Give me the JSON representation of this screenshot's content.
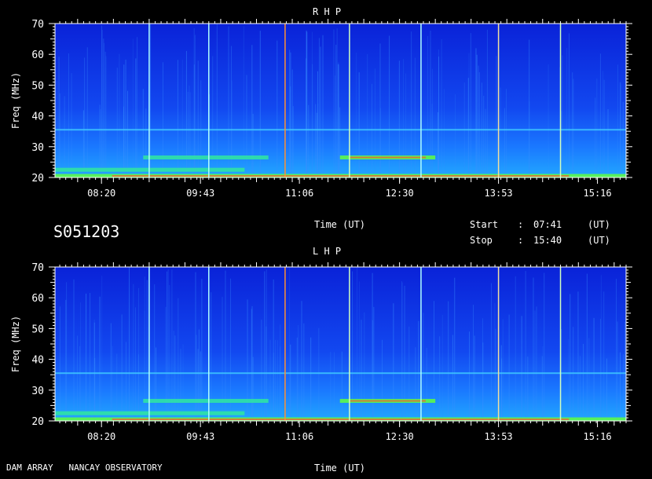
{
  "header": {
    "panel_top_title": "R H P",
    "panel_bottom_title": "L H P"
  },
  "observation": {
    "id": "S051203",
    "start_label": "Start",
    "stop_label": "Stop",
    "separator": ":",
    "start_time": "07:41",
    "stop_time": "15:40",
    "time_unit": "(UT)"
  },
  "footer": {
    "instrument": "DAM ARRAY   NANCAY OBSERVATORY"
  },
  "chart_data": [
    {
      "type": "heatmap",
      "title": "R H P",
      "xlabel": "Time (UT)",
      "ylabel": "Freq (MHz)",
      "xlim": [
        "07:41",
        "15:40"
      ],
      "ylim": [
        20,
        70
      ],
      "x_ticks": [
        "08:20",
        "09:43",
        "11:06",
        "12:30",
        "13:53",
        "15:16"
      ],
      "y_ticks": [
        20,
        30,
        40,
        50,
        60,
        70
      ],
      "bands": [
        {
          "freq": 20.5,
          "start": "07:41",
          "end": "15:40",
          "level": "high"
        },
        {
          "freq": 22.5,
          "start": "07:41",
          "end": "10:20",
          "level": "medium"
        },
        {
          "freq": 26.5,
          "start": "08:55",
          "end": "10:40",
          "level": "medium"
        },
        {
          "freq": 26.5,
          "start": "11:40",
          "end": "13:00",
          "level": "high"
        },
        {
          "freq": 35.5,
          "start": "07:41",
          "end": "15:40",
          "level": "low"
        }
      ],
      "vertical_lines": [
        {
          "time": "09:00",
          "color": "#b0ffff"
        },
        {
          "time": "09:50",
          "color": "#b0ffff"
        },
        {
          "time": "10:54",
          "color": "#ff9030"
        },
        {
          "time": "11:48",
          "color": "#d0ffc0"
        },
        {
          "time": "12:48",
          "color": "#b0ffff"
        },
        {
          "time": "13:53",
          "color": "#f0e0a0"
        },
        {
          "time": "14:45",
          "color": "#d0ffc0"
        }
      ]
    },
    {
      "type": "heatmap",
      "title": "L H P",
      "xlabel": "Time (UT)",
      "ylabel": "Freq (MHz)",
      "xlim": [
        "07:41",
        "15:40"
      ],
      "ylim": [
        20,
        70
      ],
      "x_ticks": [
        "08:20",
        "09:43",
        "11:06",
        "12:30",
        "13:53",
        "15:16"
      ],
      "y_ticks": [
        20,
        30,
        40,
        50,
        60,
        70
      ],
      "bands": [
        {
          "freq": 20.5,
          "start": "07:41",
          "end": "15:40",
          "level": "high"
        },
        {
          "freq": 22.5,
          "start": "07:41",
          "end": "10:20",
          "level": "medium"
        },
        {
          "freq": 26.5,
          "start": "08:55",
          "end": "10:40",
          "level": "medium"
        },
        {
          "freq": 26.5,
          "start": "11:40",
          "end": "13:00",
          "level": "high"
        },
        {
          "freq": 35.5,
          "start": "07:41",
          "end": "15:40",
          "level": "low"
        }
      ],
      "vertical_lines": [
        {
          "time": "09:00",
          "color": "#b0ffff"
        },
        {
          "time": "09:50",
          "color": "#b0ffff"
        },
        {
          "time": "10:54",
          "color": "#ff9030"
        },
        {
          "time": "11:48",
          "color": "#d0ffc0"
        },
        {
          "time": "12:48",
          "color": "#b0ffff"
        },
        {
          "time": "13:53",
          "color": "#f0e0a0"
        },
        {
          "time": "14:45",
          "color": "#d0ffc0"
        }
      ]
    }
  ],
  "colors": {
    "background": "#000000",
    "spectrum_low": "#1030e8",
    "spectrum_mid": "#20a0ff",
    "spectrum_high": "#30ff60",
    "burst": "#ff4020"
  }
}
